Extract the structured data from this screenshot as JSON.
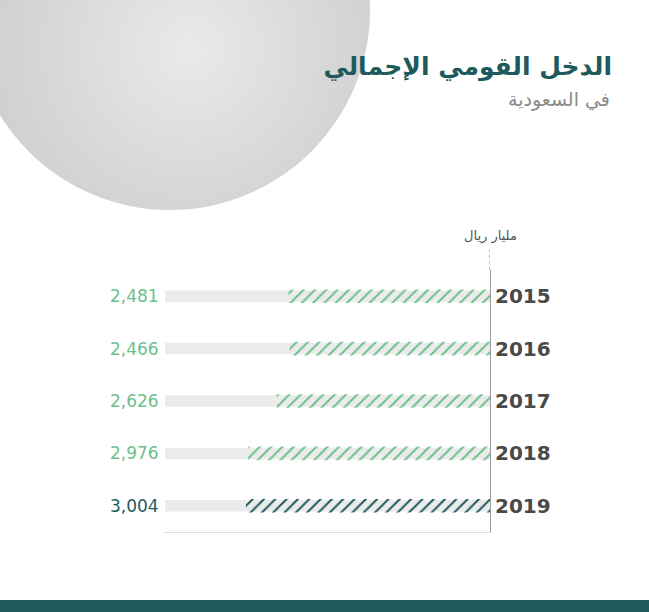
{
  "chart_data": {
    "type": "bar",
    "orientation": "horizontal",
    "title": "الدخل القومي الإجمالي",
    "subtitle": "في السعودية",
    "xlabel": "مليار ريال",
    "categories": [
      "2015",
      "2016",
      "2017",
      "2018",
      "2019"
    ],
    "values": [
      2481,
      2466,
      2626,
      2976,
      3004
    ],
    "value_labels": [
      "2,481",
      "2,466",
      "2,626",
      "2,976",
      "3,004"
    ],
    "colors": [
      "#6cc08b",
      "#6cc08b",
      "#6cc08b",
      "#6cc08b",
      "#1e5a5c"
    ],
    "xlim": [
      0,
      4000
    ],
    "xticks": [],
    "grid": false,
    "data_labels": true,
    "tick_labels": "y"
  }
}
